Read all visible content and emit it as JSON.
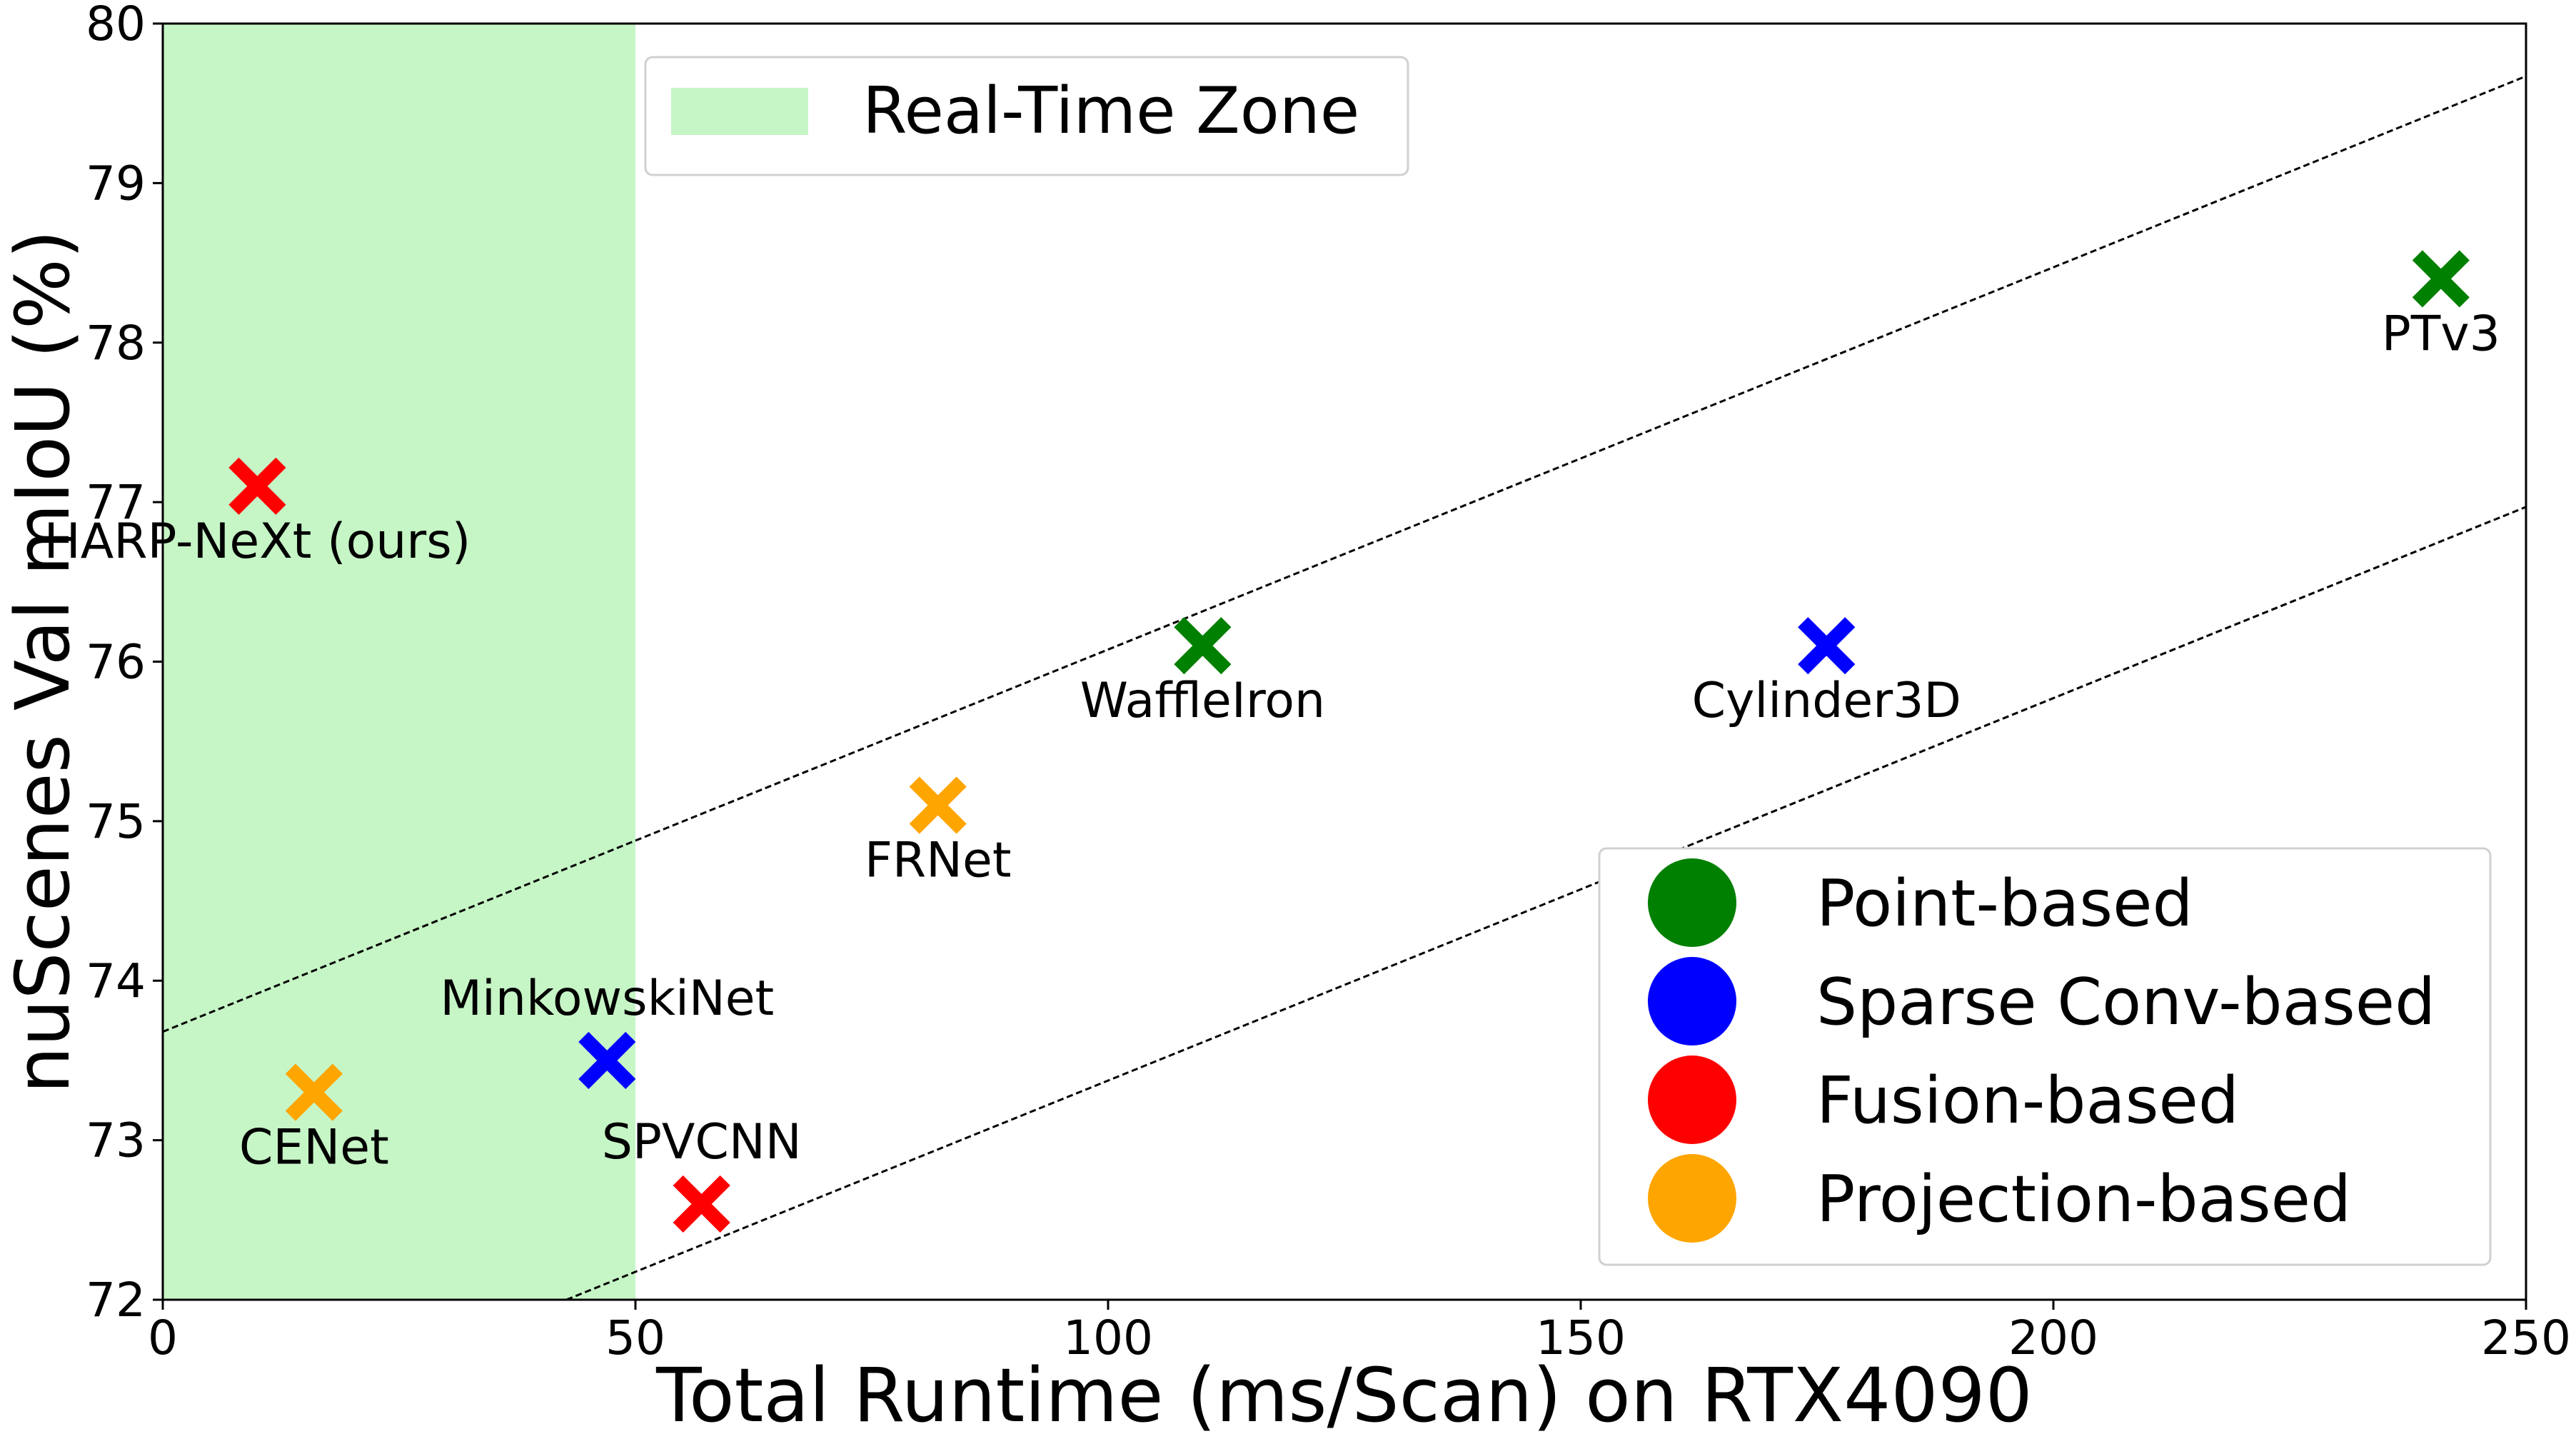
{
  "chart_data": {
    "type": "scatter",
    "title": "",
    "xlabel": "Total Runtime (ms/Scan) on RTX4090",
    "ylabel": "nuScenes Val mIoU (%)",
    "xlim": [
      0,
      250
    ],
    "ylim": [
      72,
      80
    ],
    "xticks": [
      "0",
      "50",
      "100",
      "150",
      "200",
      "250"
    ],
    "yticks": [
      "72",
      "73",
      "74",
      "75",
      "76",
      "77",
      "78",
      "79",
      "80"
    ],
    "grid": false,
    "legend_position": "bottom-right",
    "real_time_zone": {
      "label": "Real-Time Zone",
      "x_start": 0,
      "x_end": 50,
      "color": "#c6f5c6"
    },
    "trend_lines": [
      {
        "x": [
          0,
          250
        ],
        "y": [
          73.68,
          79.67
        ]
      },
      {
        "x": [
          42.7,
          250
        ],
        "y": [
          72.0,
          76.97
        ]
      }
    ],
    "categories": [
      {
        "name": "Point-based",
        "color": "#008000"
      },
      {
        "name": "Sparse Conv-based",
        "color": "#0000ff"
      },
      {
        "name": "Fusion-based",
        "color": "#ff0000"
      },
      {
        "name": "Projection-based",
        "color": "#ffa500"
      }
    ],
    "points": [
      {
        "label": "HARP-NeXt (ours)",
        "x": 10,
        "y": 77.1,
        "category": "Fusion-based",
        "label_pos": "below"
      },
      {
        "label": "CENet",
        "x": 16,
        "y": 73.3,
        "category": "Projection-based",
        "label_pos": "below"
      },
      {
        "label": "MinkowskiNet",
        "x": 47,
        "y": 73.5,
        "category": "Sparse Conv-based",
        "label_pos": "above"
      },
      {
        "label": "SPVCNN",
        "x": 57,
        "y": 72.6,
        "category": "Fusion-based",
        "label_pos": "above"
      },
      {
        "label": "FRNet",
        "x": 82,
        "y": 75.1,
        "category": "Projection-based",
        "label_pos": "below"
      },
      {
        "label": "WaffleIron",
        "x": 110,
        "y": 76.1,
        "category": "Point-based",
        "label_pos": "below"
      },
      {
        "label": "Cylinder3D",
        "x": 176,
        "y": 76.1,
        "category": "Sparse Conv-based",
        "label_pos": "below"
      },
      {
        "label": "PTv3",
        "x": 241,
        "y": 78.4,
        "category": "Point-based",
        "label_pos": "below"
      }
    ]
  }
}
